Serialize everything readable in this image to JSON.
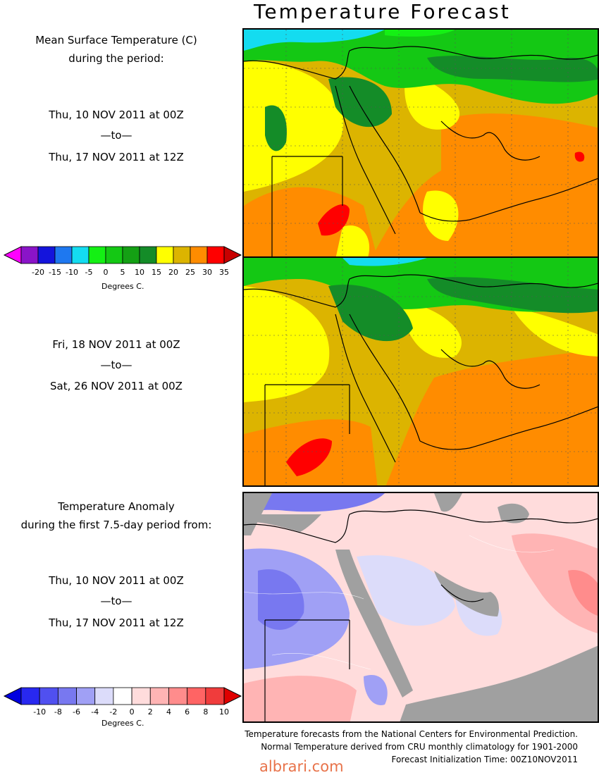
{
  "title": "Temperature Forecast",
  "panel1": {
    "heading_line1": "Mean Surface Temperature (C)",
    "heading_line2": "during the period:",
    "start": "Thu, 10 NOV 2011 at 00Z",
    "to": "—to—",
    "end": "Thu, 17 NOV 2011 at 12Z"
  },
  "panel2": {
    "start": "Fri, 18 NOV 2011 at 00Z",
    "to": "—to—",
    "end": "Sat, 26 NOV 2011 at 00Z"
  },
  "panel3": {
    "heading_line1": "Temperature Anomaly",
    "heading_line2": "during the first 7.5-day period from:",
    "start": "Thu, 10 NOV 2011 at 00Z",
    "to": "—to—",
    "end": "Thu, 17 NOV 2011 at 12Z"
  },
  "temp_scale": {
    "labels": [
      "-20",
      "-15",
      "-10",
      "-5",
      "0",
      "5",
      "10",
      "15",
      "20",
      "25",
      "30",
      "35"
    ],
    "unit": "Degrees C.",
    "colors": [
      "#ff00ff",
      "#8a14c8",
      "#1414dc",
      "#1e78f0",
      "#14dcf0",
      "#14f014",
      "#14c814",
      "#14a014",
      "#148c28",
      "#ffff00",
      "#dcb400",
      "#ff8c00",
      "#ff0000",
      "#c80000"
    ]
  },
  "anomaly_scale": {
    "labels": [
      "-10",
      "-8",
      "-6",
      "-4",
      "-2",
      "0",
      "2",
      "4",
      "6",
      "8",
      "10"
    ],
    "unit": "Degrees C.",
    "colors": [
      "#0000e0",
      "#2828f0",
      "#5050f0",
      "#7878f0",
      "#a0a0f5",
      "#dcdcfa",
      "#ffffff",
      "#ffdcdc",
      "#ffb4b4",
      "#ff8c8c",
      "#ff6464",
      "#f03c3c",
      "#e00000"
    ]
  },
  "footer": {
    "line1": "Temperature forecasts from the National Centers for Environmental Prediction.",
    "line2": "Normal Temperature derived from CRU monthly climatology for 1901-2000",
    "line3": "Forecast Initialization Time: 00Z10NOV2011"
  },
  "brand": "albrari.com"
}
